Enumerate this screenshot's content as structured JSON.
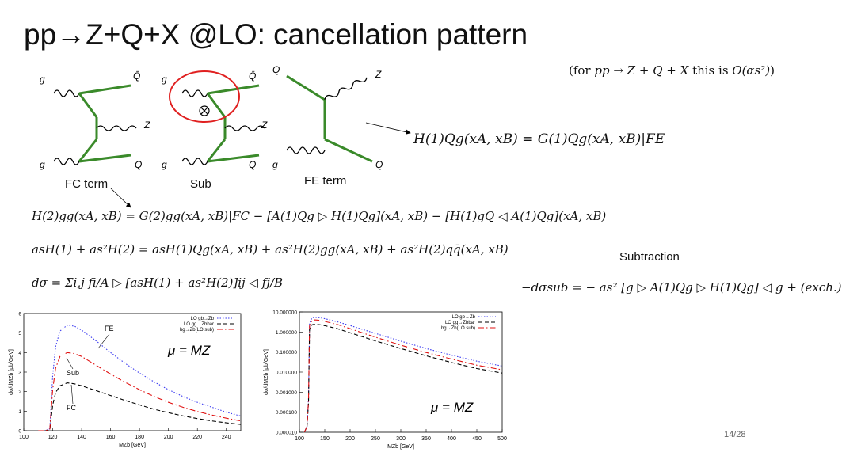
{
  "slide": {
    "title": "pp→Z+Q+X @LO: cancellation pattern",
    "order_note_prefix": "(for ",
    "order_note_process": "pp → Z + Q + X",
    "order_note_mid": " this is ",
    "order_note_order": "O(αs²)",
    "order_note_suffix": ")",
    "page_number": "14/28"
  },
  "diagrams": {
    "fc_label": "FC term",
    "sub_label": "Sub",
    "fe_label": "FE term",
    "fc": {
      "g_top": "g",
      "qbar": "Q̄",
      "z": "Z",
      "g_bot": "g",
      "q": "Q"
    },
    "sub": {
      "g_top": "g",
      "qbar": "Q̄",
      "z": "Z",
      "g_bot": "g",
      "q": "Q"
    },
    "fe": {
      "q_in": "Q",
      "z": "Z",
      "g_in": "g",
      "q_out": "Q"
    }
  },
  "equations": {
    "fe_eq": "H(1)Qg(xA, xB) = G(1)Qg(xA, xB)|FE",
    "h2gg": "H(2)gg(xA, xB) = G(2)gg(xA, xB)|FC − [A(1)Qg ▷ H(1)Qg](xA, xB) − [H(1)gQ ◁ A(1)Qg](xA, xB)",
    "expansion": "asH(1) + as²H(2) = asH(1)Qg(xA, xB) + as²H(2)gg(xA, xB) + as²H(2)qq̄(xA, xB)",
    "dsigma": "dσ = Σi,j fi/A ▷ [asH(1) + as²H(2)]ij ◁ fj/B",
    "subtraction_label": "Subtraction",
    "subtraction": "−dσsub = − as² [g ▷ A(1)Qg ▷ H(1)Qg] ◁ g + (exch.)"
  },
  "chart_data": [
    {
      "type": "line",
      "xlabel": "MZb [GeV]",
      "ylabel": "dσ/dMZb [pb/GeV]",
      "xlim": [
        100,
        250
      ],
      "ylim": [
        0,
        6
      ],
      "xticks": [
        "100",
        "120",
        "140",
        "160",
        "180",
        "200",
        "220",
        "240"
      ],
      "yticks": [
        "0",
        "1",
        "2",
        "3",
        "4",
        "5",
        "6"
      ],
      "annotation_mu": "μ = MZ",
      "annotations": [
        "FE",
        "Sub",
        "FC"
      ],
      "legend": [
        "LO gb→Zb",
        "LO gg→Zbbar",
        "bg→Zb(LO sub)"
      ],
      "legend_position": "top-right",
      "x": [
        110,
        115,
        118,
        120,
        122,
        125,
        130,
        135,
        140,
        150,
        160,
        170,
        180,
        190,
        200,
        210,
        220,
        230,
        240,
        250
      ],
      "series": [
        {
          "name": "LO gb→Zb",
          "color": "#3a3af0",
          "dash": "dotted",
          "values": [
            0,
            0,
            0.1,
            2.8,
            4.3,
            5.1,
            5.4,
            5.35,
            5.15,
            4.6,
            4.0,
            3.45,
            2.95,
            2.5,
            2.1,
            1.75,
            1.45,
            1.2,
            0.95,
            0.75
          ]
        },
        {
          "name": "LO gg→Zbbar",
          "color": "#000000",
          "dash": "dashed",
          "values": [
            0,
            0,
            0.05,
            1.3,
            1.95,
            2.3,
            2.45,
            2.4,
            2.3,
            2.05,
            1.8,
            1.55,
            1.32,
            1.1,
            0.92,
            0.76,
            0.62,
            0.5,
            0.4,
            0.32
          ]
        },
        {
          "name": "bg→Zb(LO sub)",
          "color": "#e01010",
          "dash": "dashdot",
          "values": [
            0,
            0,
            0.08,
            2.1,
            3.2,
            3.8,
            4.0,
            3.95,
            3.8,
            3.35,
            2.9,
            2.48,
            2.1,
            1.75,
            1.45,
            1.2,
            0.98,
            0.8,
            0.64,
            0.5
          ]
        }
      ]
    },
    {
      "type": "line",
      "xlabel": "MZb [GeV]",
      "ylabel": "dσ/dMZb [pb/GeV]",
      "xlim": [
        100,
        500
      ],
      "ylim": [
        1e-05,
        10
      ],
      "log_y": true,
      "xticks": [
        "100",
        "150",
        "200",
        "250",
        "300",
        "350",
        "400",
        "450",
        "500"
      ],
      "yticks": [
        "0.000010",
        "0.000100",
        "0.001000",
        "0.010000",
        "0.100000",
        "1.000000",
        "10.000000"
      ],
      "annotation_mu": "μ = MZ",
      "legend": [
        "LO gb→Zb",
        "LO gg→Zbbar",
        "bg→Zb(LO sub)"
      ],
      "legend_position": "top-right",
      "x": [
        110,
        115,
        118,
        120,
        125,
        130,
        140,
        150,
        175,
        200,
        250,
        300,
        350,
        400,
        450,
        500
      ],
      "series": [
        {
          "name": "LO gb→Zb",
          "color": "#3a3af0",
          "dash": "dotted",
          "values": [
            1e-05,
            2e-05,
            0.0005,
            2.8,
            5.1,
            5.4,
            5.15,
            4.6,
            3.2,
            2.1,
            0.85,
            0.35,
            0.15,
            0.07,
            0.035,
            0.02
          ]
        },
        {
          "name": "LO gg→Zbbar",
          "color": "#000000",
          "dash": "dashed",
          "values": [
            1e-05,
            2e-05,
            0.0003,
            1.3,
            2.3,
            2.45,
            2.3,
            2.05,
            1.45,
            0.92,
            0.36,
            0.15,
            0.065,
            0.03,
            0.015,
            0.009
          ]
        },
        {
          "name": "bg→Zb(LO sub)",
          "color": "#e01010",
          "dash": "dashdot",
          "values": [
            1e-05,
            2e-05,
            0.0004,
            2.1,
            3.8,
            4.0,
            3.8,
            3.35,
            2.35,
            1.45,
            0.55,
            0.22,
            0.095,
            0.045,
            0.022,
            0.013
          ]
        }
      ]
    }
  ]
}
